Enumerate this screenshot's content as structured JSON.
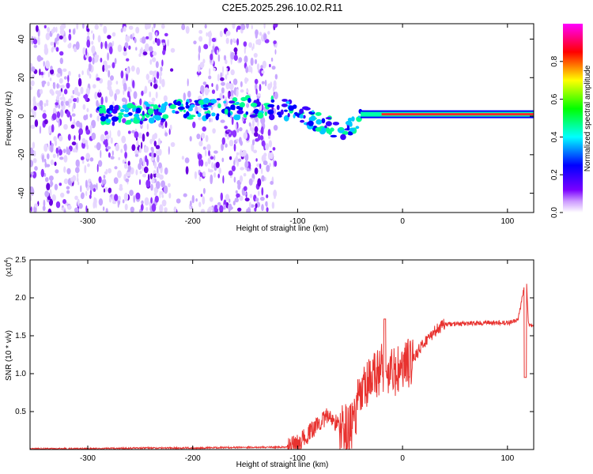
{
  "title": "C2E5.2025.296.10.02.R11",
  "chart_data": [
    {
      "type": "heatmap",
      "xlabel": "Height of straight line (km)",
      "ylabel": "Frequency (Hz)",
      "xlim": [
        -355,
        125
      ],
      "ylim": [
        -50,
        48
      ],
      "xticks": [
        -300,
        -200,
        -100,
        0,
        100
      ],
      "yticks": [
        -40,
        -20,
        0,
        20,
        40
      ],
      "colorbar": {
        "label": "Normalized spectral amplitude",
        "range": [
          0,
          1
        ],
        "ticks": [
          0.0,
          0.2,
          0.4,
          0.6,
          0.8
        ],
        "tick_labels": [
          "0.0",
          "0.2",
          "0.4",
          "0.6",
          "0.8"
        ],
        "colormap": [
          "#ffffff",
          "#7a00ff",
          "#0000ff",
          "#00ffff",
          "#00ff00",
          "#ffff00",
          "#ff0000",
          "#ff00ff"
        ]
      },
      "trace": [
        {
          "x": -270,
          "y": 1
        },
        {
          "x": -210,
          "y": 3
        },
        {
          "x": -130,
          "y": 5
        },
        {
          "x": -100,
          "y": 2
        },
        {
          "x": -80,
          "y": -3
        },
        {
          "x": -60,
          "y": -8
        },
        {
          "x": -40,
          "y": -1
        },
        {
          "x": -20,
          "y": 1
        },
        {
          "x": 0,
          "y": 1
        },
        {
          "x": 50,
          "y": 1
        },
        {
          "x": 125,
          "y": 2
        }
      ]
    },
    {
      "type": "line",
      "xlabel": "Height of straight line (km)",
      "ylabel": "SNR (10 * v/v)",
      "multiplier": "(x10",
      "multiplier_exp": "4",
      "multiplier_close": ")",
      "xlim": [
        -355,
        125
      ],
      "ylim": [
        0,
        2.5
      ],
      "xticks": [
        -300,
        -200,
        -100,
        0,
        100
      ],
      "yticks": [
        0.5,
        1.0,
        1.5,
        2.0,
        2.5
      ],
      "ytick_labels": [
        "0.5",
        "1.0",
        "1.5",
        "2.0",
        "2.5"
      ],
      "color": "#e8322f",
      "series": [
        {
          "x": [
            -355,
            -300,
            -250,
            -200,
            -150,
            -110,
            -100,
            -90,
            -80,
            -70,
            -60,
            -50,
            -40,
            -30,
            -20,
            -10,
            0,
            10,
            20,
            30,
            40,
            60,
            80,
            100,
            110,
            118,
            120,
            125
          ],
          "values": [
            0.01,
            0.01,
            0.02,
            0.02,
            0.03,
            0.03,
            0.08,
            0.2,
            0.35,
            0.45,
            0.3,
            0.25,
            0.7,
            0.9,
            1.1,
            1.0,
            1.05,
            1.2,
            1.4,
            1.55,
            1.65,
            1.66,
            1.67,
            1.67,
            1.7,
            2.3,
            1.65,
            1.63
          ]
        }
      ]
    }
  ]
}
